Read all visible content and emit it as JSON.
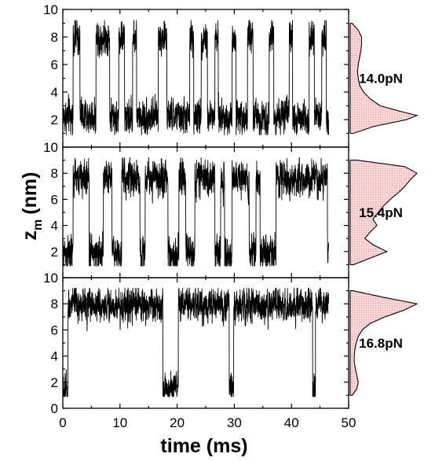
{
  "chart_data": {
    "type": "line",
    "xlabel": "time (ms)",
    "ylabel": {
      "main": "z",
      "subscript": "m",
      "unit": "(nm)"
    },
    "xlim": [
      0,
      50
    ],
    "x_ticks": [
      "0",
      "10",
      "20",
      "30",
      "40",
      "50"
    ],
    "ylim": [
      0,
      10
    ],
    "y_ticks_top": [
      "2",
      "4",
      "6",
      "8",
      "10"
    ],
    "y_ticks_middle": [
      "2",
      "4",
      "6",
      "8",
      "10"
    ],
    "y_ticks_bottom": [
      "0",
      "2",
      "4",
      "6",
      "8",
      "10"
    ],
    "grid": false,
    "trace_duration_ms": 46.5,
    "histogram_color": "#f4a0a0",
    "panels": [
      {
        "force_label": "14.0pN",
        "low_state_nm": 2.2,
        "high_state_nm": 8.0,
        "noise_nm": 0.55,
        "high_intervals_ms": [
          [
            1.8,
            3.0
          ],
          [
            5.8,
            8.2
          ],
          [
            9.8,
            10.8
          ],
          [
            12.2,
            12.9
          ],
          [
            16.7,
            18.2
          ],
          [
            22.2,
            22.9
          ],
          [
            24.2,
            25.3
          ],
          [
            26.6,
            27.2
          ],
          [
            29.6,
            30.3
          ],
          [
            32.3,
            33.3
          ],
          [
            36.1,
            36.9
          ],
          [
            39.6,
            40.2
          ],
          [
            43.1,
            44.0
          ],
          [
            45.3,
            46.1
          ]
        ],
        "histogram": {
          "z": [
            1.0,
            1.5,
            2.0,
            2.3,
            2.6,
            3.0,
            3.5,
            4.0,
            4.5,
            5.0,
            5.5,
            6.0,
            6.5,
            7.0,
            7.5,
            8.0,
            8.5,
            9.0
          ],
          "p": [
            0.05,
            0.35,
            0.85,
            1.0,
            0.75,
            0.45,
            0.3,
            0.2,
            0.14,
            0.12,
            0.11,
            0.12,
            0.14,
            0.16,
            0.17,
            0.17,
            0.12,
            0.03
          ]
        }
      },
      {
        "force_label": "15.4pN",
        "low_state_nm": 1.9,
        "high_state_nm": 7.6,
        "noise_nm": 0.6,
        "high_intervals_ms": [
          [
            1.8,
            4.6
          ],
          [
            7.1,
            8.6
          ],
          [
            10.3,
            13.5
          ],
          [
            14.4,
            18.4
          ],
          [
            20.3,
            21.5
          ],
          [
            23.1,
            26.6
          ],
          [
            27.6,
            28.3
          ],
          [
            29.6,
            32.6
          ],
          [
            33.8,
            34.5
          ],
          [
            37.3,
            46.3
          ]
        ],
        "histogram": {
          "z": [
            1.0,
            1.5,
            2.0,
            2.5,
            3.0,
            3.5,
            4.0,
            4.5,
            5.0,
            5.5,
            6.0,
            6.5,
            7.0,
            7.5,
            8.0,
            8.5,
            9.0
          ],
          "p": [
            0.05,
            0.3,
            0.55,
            0.35,
            0.22,
            0.3,
            0.4,
            0.34,
            0.42,
            0.5,
            0.6,
            0.72,
            0.82,
            0.9,
            1.0,
            0.82,
            0.1
          ]
        }
      },
      {
        "force_label": "16.8pN",
        "low_state_nm": 1.4,
        "high_state_nm": 7.9,
        "noise_nm": 0.55,
        "low_intervals_ms": [
          [
            0.0,
            0.9
          ],
          [
            17.5,
            20.2
          ],
          [
            29.1,
            29.9
          ],
          [
            43.7,
            44.2
          ]
        ],
        "histogram": {
          "z": [
            1.0,
            1.5,
            2.0,
            2.5,
            3.0,
            3.5,
            4.0,
            4.5,
            5.0,
            5.5,
            6.0,
            6.5,
            7.0,
            7.5,
            8.0,
            8.5,
            9.0
          ],
          "p": [
            0.03,
            0.1,
            0.12,
            0.1,
            0.08,
            0.06,
            0.06,
            0.07,
            0.09,
            0.12,
            0.18,
            0.3,
            0.52,
            0.8,
            1.0,
            0.5,
            0.04
          ]
        }
      }
    ]
  }
}
